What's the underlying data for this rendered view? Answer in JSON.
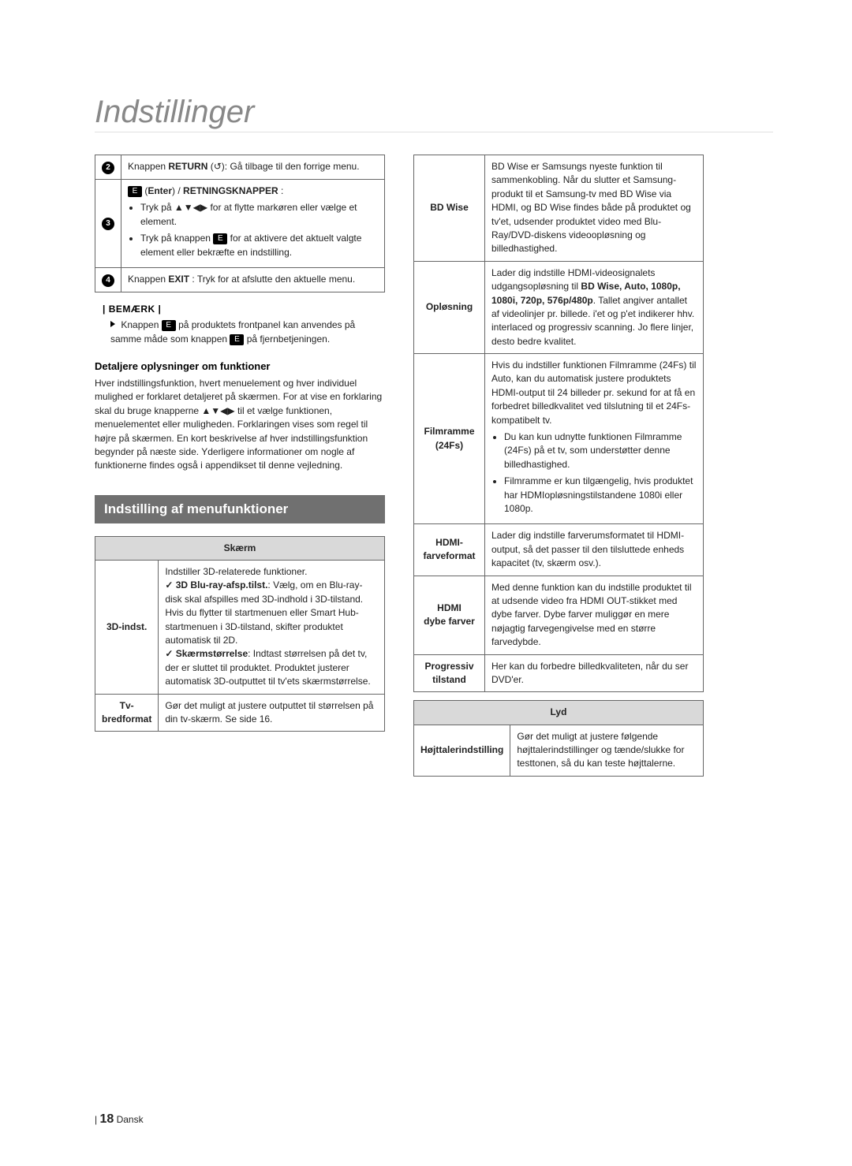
{
  "page_title": "Indstillinger",
  "button_table": {
    "rows": [
      {
        "num": "2",
        "html": "Knappen <b>RETURN</b> (<span>↺</span>): Gå tilbage til den forrige menu."
      },
      {
        "num": "3",
        "html": "<span class='icon-box'>E</span> (<b>Enter</b>) / <b>RETNINGSKNAPPER</b> :<ul class='bullets'><li>Tryk på ▲▼◀▶ for at flytte markøren eller vælge et element.</li><li>Tryk på knappen <span class='icon-box'>E</span> for at aktivere det aktuelt valgte element eller bekræfte en indstilling.</li></ul>"
      },
      {
        "num": "4",
        "html": "Knappen <b>EXIT</b> : Tryk for at afslutte den aktuelle menu."
      }
    ]
  },
  "note_label": "| BEMÆRK |",
  "note_text": "Knappen <span class='icon-box'>E</span> på produktets frontpanel kan anvendes på samme måde som knappen <span class='icon-box'>E</span> på fjernbetjeningen.",
  "detaljere_heading": "Detaljere oplysninger om funktioner",
  "detaljere_text": "Hver indstillingsfunktion, hvert menuelement og hver individuel mulighed er forklaret detaljeret på skærmen. For at vise en forklaring skal du bruge knapperne ▲▼◀▶ til et vælge funktionen, menuelementet eller muligheden. Forklaringen vises som regel til højre på skærmen. En kort beskrivelse af hver indstillingsfunktion begynder på næste side. Yderligere informationer om nogle af funktionerne findes også i appendikset til denne vejledning.",
  "section_bar": "Indstilling af menufunktioner",
  "skaerm_table": {
    "header": "Skærm",
    "rows": [
      {
        "label": "3D-indst.",
        "html": "Indstiller 3D-relaterede funktioner.<br><span class='check'>✓ 3D Blu-ray-afsp.tilst.</span>: Vælg, om en Blu-ray-disk skal afspilles med 3D-indhold i 3D-tilstand. Hvis du flytter til startmenuen eller Smart Hub-startmenuen i 3D-tilstand, skifter produktet automatisk til 2D.<br><span class='check'>✓ Skærmstørrelse</span>: Indtast størrelsen på det tv, der er sluttet til produktet. Produktet justerer automatisk 3D-outputtet til tv'ets skærmstørrelse."
      },
      {
        "label": "Tv-bredformat",
        "html": "Gør det muligt at justere outputtet til størrelsen på din tv-skærm. Se side 16."
      }
    ]
  },
  "right_table": {
    "rows": [
      {
        "label": "BD Wise",
        "html": "BD Wise er Samsungs nyeste funktion til sammenkobling. Når du slutter et Samsung-produkt til et Samsung-tv med BD Wise via HDMI, og BD Wise findes både på produktet og tv'et, udsender produktet video med Blu-Ray/DVD-diskens videoopløsning og billedhastighed."
      },
      {
        "label": "Opløsning",
        "html": "Lader dig indstille HDMI-videosignalets udgangsopløsning til <b>BD Wise, Auto, 1080p, 1080i, 720p, 576p/480p</b>. Tallet angiver antallet af videolinjer pr. billede. i'et og p'et indikerer hhv. interlaced og progressiv scanning. Jo flere linjer, desto bedre kvalitet."
      },
      {
        "label": "Filmramme (24Fs)",
        "html": "Hvis du indstiller funktionen Filmramme (24Fs) til Auto, kan du automatisk justere produktets HDMI-output til 24 billeder pr. sekund for at få en forbedret billedkvalitet ved tilslutning til et 24Fs-kompatibelt tv.<ul class='bullets'><li>Du kan kun udnytte funktionen Filmramme (24Fs) på et tv, som understøtter denne billedhastighed.</li><li>Filmramme er kun tilgængelig, hvis produktet har HDMIopløsningstilstandene 1080i eller 1080p.</li></ul>"
      },
      {
        "label": "HDMI-farveformat",
        "html": "Lader dig indstille farverumsformatet til HDMI-output, så det passer til den tilsluttede enheds kapacitet (tv, skærm osv.)."
      },
      {
        "label": "HDMI dybe farver",
        "html": "Med denne funktion kan du indstille produktet til at udsende video fra HDMI OUT-stikket med dybe farver. Dybe farver muliggør en mere nøjagtig farvegengivelse med en større farvedybde."
      },
      {
        "label": "Progressiv tilstand",
        "html": "Her kan du forbedre billedkvaliteten, når du ser DVD'er."
      }
    ]
  },
  "lyd_table": {
    "header": "Lyd",
    "rows": [
      {
        "label": "Højttalerindstilling",
        "html": "Gør det muligt at justere følgende højttalerindstillinger og tænde/slukke for testtonen, så du kan teste højttalerne."
      }
    ]
  },
  "footer": {
    "page": "18",
    "lang": "Dansk"
  }
}
